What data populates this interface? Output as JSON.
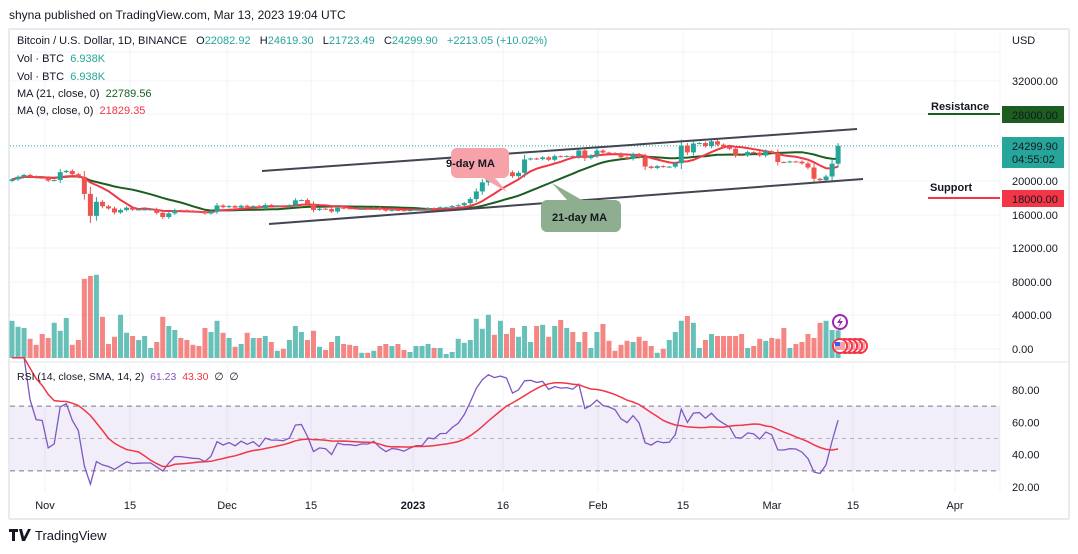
{
  "header": {
    "published": "shyna published on TradingView.com, Mar 13, 2023 19:04 UTC"
  },
  "legend": {
    "symbol": "Bitcoin / U.S. Dollar, 1D, BINANCE",
    "o_label": "O",
    "o": "22082.92",
    "h_label": "H",
    "h": "24619.30",
    "l_label": "L",
    "l": "21723.49",
    "c_label": "C",
    "c": "24299.90",
    "change": "+2213.05 (+10.02%)",
    "vol1_label": "Vol · BTC",
    "vol1": "6.938K",
    "vol2_label": "Vol · BTC",
    "vol2": "6.938K",
    "ma21_label": "MA (21, close, 0)",
    "ma21": "22789.56",
    "ma9_label": "MA (9, close, 0)",
    "ma9": "21829.35",
    "rsi_label": "RSI (14, close, SMA, 14, 2)",
    "rsi": "61.23",
    "rsi_ma": "43.30",
    "rsi_extra1": "∅",
    "rsi_extra2": "∅"
  },
  "annotations": {
    "ma9": "9-day MA",
    "ma21": "21-day MA",
    "resistance": "Resistance",
    "support": "Support"
  },
  "price_axis": {
    "currency": "USD",
    "ticks": [
      "32000.00",
      "20000.00",
      "16000.00",
      "12000.00",
      "8000.00",
      "4000.00",
      "0.00"
    ],
    "resistance_tag": "28000.00",
    "support_tag": "18000.00",
    "last_price": "24299.90",
    "countdown": "04:55:02"
  },
  "rsi_axis": {
    "ticks": [
      "80.00",
      "60.00",
      "40.00",
      "20.00"
    ]
  },
  "time_axis": {
    "ticks": [
      "Nov",
      "15",
      "Dec",
      "15",
      "2023",
      "16",
      "Feb",
      "15",
      "Mar",
      "15",
      "Apr"
    ]
  },
  "footer": {
    "brand": "TradingView"
  },
  "colors": {
    "up": "#26a69a",
    "down": "#ef5350",
    "ma9": "#f23645",
    "ma21": "#1b5e20",
    "rsi": "#7e57c2",
    "rsi_ma": "#f23645"
  },
  "chart_data": {
    "type": "candlestick",
    "title": "Bitcoin / U.S. Dollar, 1D, BINANCE",
    "ylabel": "USD",
    "ylim": [
      0,
      36000
    ],
    "first_open": 20095,
    "closes": [
      20290,
      20595,
      20818,
      20632,
      20490,
      20483,
      20151,
      20207,
      21148,
      21300,
      20905,
      20591,
      18547,
      15922,
      17601,
      17070,
      16812,
      16330,
      16619,
      16900,
      16663,
      16692,
      16700,
      16700,
      16280,
      15781,
      16226,
      16603,
      16598,
      16522,
      16458,
      16428,
      16213,
      16442,
      17168,
      16967,
      17089,
      16908,
      17131,
      16968,
      17089,
      16837,
      17225,
      17128,
      17128,
      17105,
      17206,
      17781,
      17813,
      17363,
      16634,
      16781,
      16742,
      16440,
      16897,
      16825,
      16820,
      16778,
      16838,
      16832,
      16919,
      16706,
      16547,
      16633,
      16607,
      16542,
      16617,
      16673,
      16675,
      16850,
      16831,
      16951,
      16955,
      17092,
      17196,
      17446,
      17934,
      18846,
      19930,
      20954,
      20871,
      21185,
      21132,
      20677,
      21071,
      22667,
      22783,
      22707,
      22916,
      22633,
      23060,
      23009,
      23074,
      23027,
      23743,
      22826,
      23125,
      23733,
      23496,
      23432,
      23326,
      22932,
      22763,
      23264,
      22939,
      21819,
      21651,
      21871,
      21788,
      21808,
      22221,
      24328,
      23517,
      24569,
      24631,
      24271,
      24838,
      24439,
      24188,
      23947,
      23198,
      23175,
      23555,
      23493,
      23147,
      23646,
      23475,
      22362,
      22354,
      22430,
      22410,
      22197,
      21705,
      20363,
      20187,
      20633,
      22163,
      24299.9
    ],
    "last_high": 24619.3,
    "last_low": 21723.49,
    "volumes_k": [
      9.3,
      7.8,
      7.5,
      4.8,
      3.3,
      6,
      5,
      8.8,
      6.8,
      10,
      3.3,
      4.5,
      19.8,
      20.5,
      20.8,
      10.3,
      3.5,
      5.3,
      10.8,
      6.3,
      5.5,
      4.5,
      5.5,
      2.5,
      4,
      10.3,
      8,
      7,
      5,
      4.5,
      3.3,
      3,
      7.5,
      6.5,
      9.3,
      6.3,
      5,
      2.8,
      3.5,
      6.3,
      5,
      5,
      5.5,
      4,
      1.8,
      2.3,
      4.5,
      8,
      6.5,
      4.5,
      6.8,
      2.8,
      2,
      4,
      5.5,
      3.5,
      3.3,
      3,
      1.3,
      1.3,
      1.8,
      3,
      3.5,
      3,
      3.5,
      2,
      1.5,
      3,
      3,
      3.5,
      2.5,
      2.5,
      1,
      1.5,
      4.8,
      3.8,
      4.5,
      9.8,
      7.3,
      10.8,
      5.8,
      9.3,
      6,
      7.5,
      5.3,
      8,
      4,
      8,
      8.3,
      5.3,
      8,
      9.5,
      7.5,
      6.5,
      4,
      6.5,
      2.5,
      6.5,
      8.5,
      4.3,
      1.8,
      3.3,
      4.3,
      4,
      5.3,
      4.3,
      3,
      1.3,
      2.3,
      4.5,
      6.5,
      9.3,
      10.5,
      8.8,
      2.5,
      4.5,
      6,
      5.5,
      5.5,
      5.5,
      5.5,
      6,
      2.5,
      3,
      4.8,
      4.3,
      5,
      4.8,
      7.5,
      2.5,
      3.5,
      4,
      6,
      5,
      8.8,
      9.3,
      7,
      6.938
    ],
    "ma_periods": [
      9,
      21
    ],
    "resistance": 28000,
    "support": 18000,
    "rsi": {
      "period": 14,
      "ma_period": 14,
      "ylim": [
        20,
        90
      ],
      "bands": [
        30,
        50,
        70
      ]
    }
  }
}
